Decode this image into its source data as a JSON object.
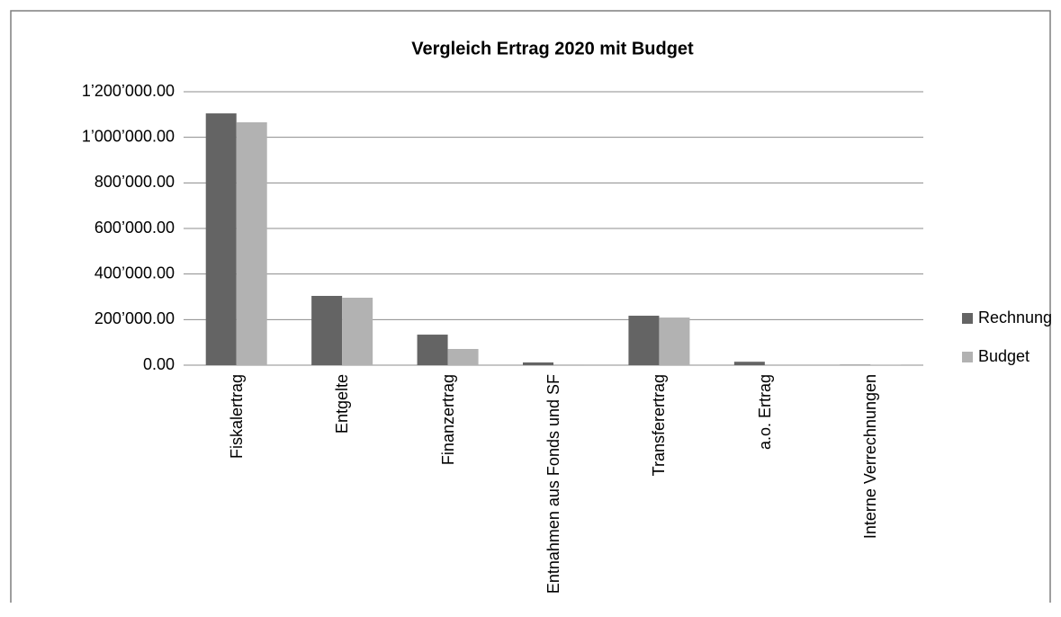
{
  "chart_data": {
    "type": "bar",
    "title": "Vergleich Ertrag 2020 mit Budget",
    "categories": [
      "Fiskalertrag",
      "Entgelte",
      "Finanzertrag",
      "Entnahmen aus Fonds und SF",
      "Transferertrag",
      "a.o. Ertrag",
      "Interne Verrechnungen"
    ],
    "series": [
      {
        "name": "Rechnung",
        "color": "#646464",
        "values": [
          1105000,
          304000,
          134000,
          12000,
          217000,
          15000,
          2000
        ]
      },
      {
        "name": "Budget",
        "color": "#b2b2b2",
        "values": [
          1066000,
          296000,
          71000,
          3000,
          209000,
          0,
          1000
        ]
      }
    ],
    "ylim": [
      0,
      1200000
    ],
    "yticks": [
      {
        "value": 0,
        "label": "0.00"
      },
      {
        "value": 200000,
        "label": "200’000.00"
      },
      {
        "value": 400000,
        "label": "400’000.00"
      },
      {
        "value": 600000,
        "label": "600’000.00"
      },
      {
        "value": 800000,
        "label": "800’000.00"
      },
      {
        "value": 1000000,
        "label": "1’000’000.00"
      },
      {
        "value": 1200000,
        "label": "1’200’000.00"
      }
    ],
    "grid": true,
    "legend": "right"
  }
}
